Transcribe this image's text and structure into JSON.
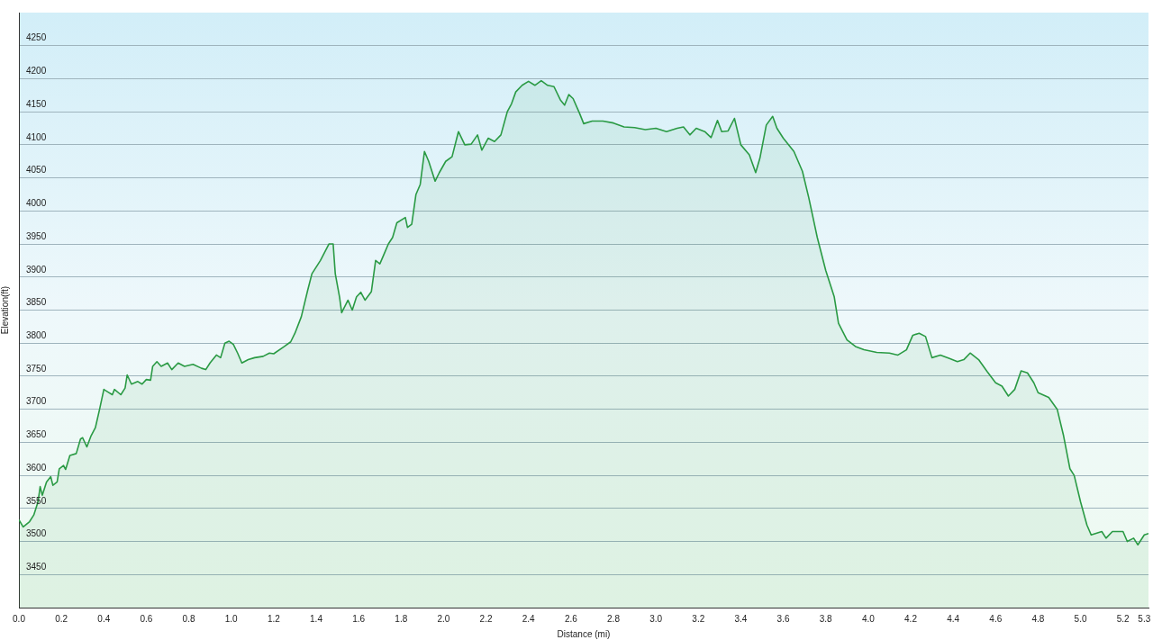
{
  "chart_data": {
    "type": "area",
    "xlabel": "Distance (mi)",
    "ylabel": "Elevation(ft)",
    "xlim": [
      0,
      5.32
    ],
    "ylim": [
      3400,
      4300
    ],
    "xticks": [
      {
        "value": 0,
        "label": "0.0"
      },
      0.2,
      0.4,
      0.6,
      0.8,
      {
        "value": 1,
        "label": "1.0"
      },
      1.2,
      1.4,
      1.6,
      1.8,
      {
        "value": 2,
        "label": "2.0"
      },
      2.2,
      2.4,
      2.6,
      2.8,
      {
        "value": 3,
        "label": "3.0"
      },
      3.2,
      3.4,
      3.6,
      3.8,
      {
        "value": 4,
        "label": "4.0"
      },
      4.2,
      4.4,
      4.6,
      4.8,
      {
        "value": 5,
        "label": "5.0"
      },
      5.2,
      5.3
    ],
    "yticks": [
      3450,
      3500,
      3550,
      3600,
      3650,
      3700,
      3750,
      3800,
      3850,
      3900,
      3950,
      4000,
      4050,
      4100,
      4150,
      4200,
      4250
    ],
    "grid": "y",
    "legend": false,
    "marker": "none",
    "line_style": "solid",
    "x": [
      0,
      0.02,
      0.05,
      0.07,
      0.09,
      0.1,
      0.11,
      0.13,
      0.15,
      0.16,
      0.18,
      0.19,
      0.21,
      0.22,
      0.24,
      0.27,
      0.29,
      0.3,
      0.32,
      0.34,
      0.36,
      0.38,
      0.4,
      0.42,
      0.44,
      0.45,
      0.48,
      0.5,
      0.51,
      0.53,
      0.56,
      0.58,
      0.6,
      0.62,
      0.63,
      0.65,
      0.67,
      0.7,
      0.72,
      0.75,
      0.78,
      0.82,
      0.86,
      0.88,
      0.9,
      0.93,
      0.95,
      0.97,
      0.99,
      1.01,
      1.03,
      1.05,
      1.08,
      1.11,
      1.15,
      1.18,
      1.2,
      1.25,
      1.28,
      1.3,
      1.33,
      1.36,
      1.38,
      1.42,
      1.46,
      1.48,
      1.49,
      1.51,
      1.52,
      1.55,
      1.57,
      1.59,
      1.61,
      1.63,
      1.66,
      1.68,
      1.7,
      1.72,
      1.74,
      1.76,
      1.78,
      1.82,
      1.83,
      1.85,
      1.87,
      1.89,
      1.91,
      1.93,
      1.96,
      1.98,
      2.01,
      2.04,
      2.07,
      2.1,
      2.13,
      2.16,
      2.18,
      2.21,
      2.24,
      2.27,
      2.3,
      2.32,
      2.34,
      2.37,
      2.4,
      2.43,
      2.46,
      2.49,
      2.52,
      2.55,
      2.57,
      2.59,
      2.61,
      2.64,
      2.66,
      2.7,
      2.75,
      2.8,
      2.85,
      2.9,
      2.95,
      3,
      3.05,
      3.1,
      3.13,
      3.16,
      3.19,
      3.23,
      3.26,
      3.29,
      3.31,
      3.34,
      3.37,
      3.4,
      3.44,
      3.47,
      3.49,
      3.52,
      3.55,
      3.57,
      3.6,
      3.65,
      3.69,
      3.72,
      3.76,
      3.8,
      3.84,
      3.86,
      3.9,
      3.94,
      3.98,
      4.04,
      4.1,
      4.14,
      4.18,
      4.21,
      4.24,
      4.27,
      4.3,
      4.34,
      4.38,
      4.42,
      4.45,
      4.48,
      4.52,
      4.56,
      4.6,
      4.63,
      4.66,
      4.69,
      4.72,
      4.75,
      4.78,
      4.8,
      4.85,
      4.89,
      4.92,
      4.95,
      4.97,
      5,
      5.03,
      5.05,
      5.1,
      5.12,
      5.15,
      5.2,
      5.22,
      5.25,
      5.27,
      5.3,
      5.32
    ],
    "series": [
      {
        "color": "#2a9a44",
        "values": [
          3533,
          3522,
          3530,
          3540,
          3560,
          3583,
          3570,
          3590,
          3598,
          3585,
          3590,
          3610,
          3615,
          3609,
          3630,
          3633,
          3655,
          3657,
          3643,
          3660,
          3672,
          3700,
          3730,
          3726,
          3722,
          3730,
          3722,
          3732,
          3752,
          3738,
          3742,
          3738,
          3745,
          3744,
          3765,
          3772,
          3765,
          3770,
          3760,
          3770,
          3765,
          3768,
          3762,
          3760,
          3770,
          3782,
          3778,
          3800,
          3803,
          3798,
          3785,
          3770,
          3775,
          3778,
          3780,
          3785,
          3784,
          3795,
          3802,
          3815,
          3840,
          3880,
          3905,
          3925,
          3950,
          3950,
          3905,
          3870,
          3846,
          3865,
          3850,
          3870,
          3877,
          3865,
          3878,
          3925,
          3920,
          3935,
          3950,
          3960,
          3982,
          3990,
          3975,
          3980,
          4025,
          4040,
          4090,
          4075,
          4045,
          4058,
          4075,
          4082,
          4120,
          4100,
          4101,
          4115,
          4092,
          4110,
          4105,
          4115,
          4150,
          4162,
          4180,
          4190,
          4196,
          4190,
          4197,
          4190,
          4188,
          4168,
          4160,
          4176,
          4170,
          4148,
          4132,
          4136,
          4136,
          4133,
          4127,
          4126,
          4123,
          4125,
          4120,
          4125,
          4127,
          4115,
          4125,
          4120,
          4111,
          4137,
          4120,
          4121,
          4140,
          4100,
          4085,
          4058,
          4080,
          4130,
          4143,
          4125,
          4110,
          4090,
          4060,
          4020,
          3960,
          3910,
          3870,
          3830,
          3805,
          3795,
          3790,
          3786,
          3785,
          3782,
          3790,
          3812,
          3815,
          3810,
          3778,
          3782,
          3777,
          3772,
          3775,
          3785,
          3775,
          3757,
          3740,
          3735,
          3720,
          3730,
          3758,
          3755,
          3740,
          3725,
          3718,
          3700,
          3660,
          3610,
          3600,
          3560,
          3525,
          3510,
          3515,
          3505,
          3515,
          3515,
          3500,
          3505,
          3495,
          3510,
          3512
        ]
      }
    ]
  }
}
